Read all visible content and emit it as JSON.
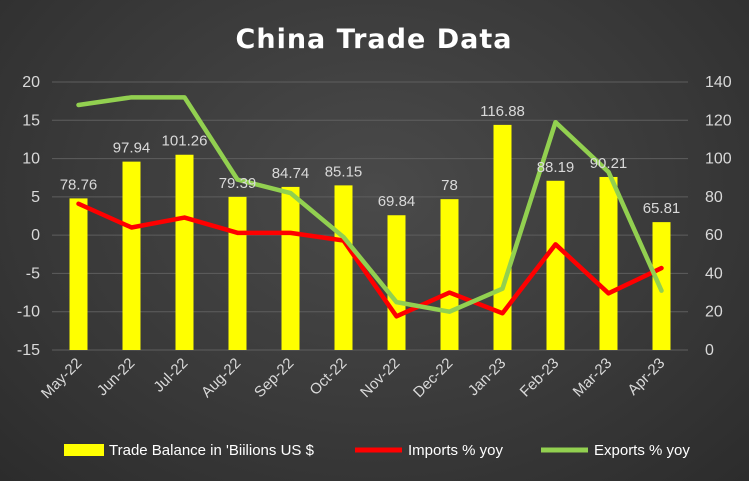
{
  "chart_data": {
    "type": "bar",
    "title": "China Trade Data",
    "categories": [
      "May-22",
      "Jun-22",
      "Jul-22",
      "Aug-22",
      "Sep-22",
      "Oct-22",
      "Nov-22",
      "Dec-22",
      "Jan-23",
      "Feb-23",
      "Mar-23",
      "Apr-23"
    ],
    "series": [
      {
        "name": "Trade Balance in 'Biilions US $",
        "type": "bar",
        "axis": "left",
        "color": "#ffff00",
        "values": [
          4.8,
          9.6,
          10.5,
          5.0,
          6.3,
          6.5,
          2.6,
          4.7,
          14.4,
          7.1,
          7.6,
          1.7
        ],
        "labels": [
          "78.76",
          "97.94",
          "101.26",
          "79.39",
          "84.74",
          "85.15",
          "69.84",
          "78",
          "116.88",
          "88.19",
          "90.21",
          "65.81"
        ]
      },
      {
        "name": "Imports % yoy",
        "type": "line",
        "axis": "left",
        "color": "#ff0000",
        "values": [
          4.1,
          1.0,
          2.3,
          0.3,
          0.3,
          -0.7,
          -10.6,
          -7.5,
          -10.2,
          -1.2,
          -7.6,
          -4.3
        ]
      },
      {
        "name": "Exports % yoy",
        "type": "line",
        "axis": "right",
        "color": "#92d050",
        "values": [
          128,
          132,
          132,
          89,
          82,
          59,
          25,
          20,
          32,
          119,
          93,
          31
        ]
      }
    ],
    "ylim": [
      -15,
      20
    ],
    "yticks": [
      "20",
      "15",
      "10",
      "5",
      "0",
      "-5",
      "-10",
      "-15"
    ],
    "y2lim": [
      0,
      140
    ],
    "y2ticks": [
      "140",
      "120",
      "100",
      "80",
      "60",
      "40",
      "20",
      "0"
    ],
    "grid": true,
    "legend_position": "bottom"
  }
}
